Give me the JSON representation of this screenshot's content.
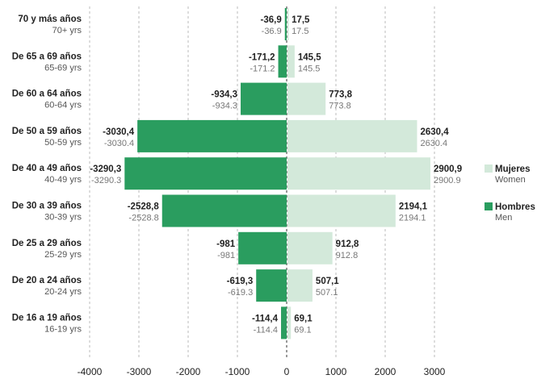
{
  "colors": {
    "men": "#2a9d5f",
    "women": "#d3e9da",
    "grid": "#bbbbbb",
    "axis": "#333333"
  },
  "chart_data": {
    "type": "bar",
    "orientation": "horizontal",
    "categories": [
      {
        "es": "70 y más años",
        "en": "70+ yrs"
      },
      {
        "es": "De 65 a 69 años",
        "en": "65-69 yrs"
      },
      {
        "es": "De 60 a 64 años",
        "en": "60-64 yrs"
      },
      {
        "es": "De 50 a 59 años",
        "en": "50-59 yrs"
      },
      {
        "es": "De 40 a 49 años",
        "en": "40-49 yrs"
      },
      {
        "es": "De 30 a 39 años",
        "en": "30-39 yrs"
      },
      {
        "es": "De 25 a 29 años",
        "en": "25-29 yrs"
      },
      {
        "es": "De 20 a 24 años",
        "en": "20-24 yrs"
      },
      {
        "es": "De 16 a 19 años",
        "en": "16-19 yrs"
      }
    ],
    "series": [
      {
        "name": "Hombres",
        "name_en": "Men",
        "key": "men",
        "values": [
          -36.9,
          -171.2,
          -934.3,
          -3030.4,
          -3290.3,
          -2528.8,
          -981,
          -619.3,
          -114.4
        ],
        "labels_es": [
          "-36,9",
          "-171,2",
          "-934,3",
          "-3030,4",
          "-3290,3",
          "-2528,8",
          "-981",
          "-619,3",
          "-114,4"
        ],
        "labels_en": [
          "-36.9",
          "-171.2",
          "-934.3",
          "-3030.4",
          "-3290.3",
          "-2528.8",
          "-981",
          "-619.3",
          "-114.4"
        ]
      },
      {
        "name": "Mujeres",
        "name_en": "Women",
        "key": "women",
        "values": [
          17.5,
          145.5,
          773.8,
          2630.4,
          2900.9,
          2194.1,
          912.8,
          507.1,
          69.1
        ],
        "labels_es": [
          "17,5",
          "145,5",
          "773,8",
          "2630,4",
          "2900,9",
          "2194,1",
          "912,8",
          "507,1",
          "69,1"
        ],
        "labels_en": [
          "17.5",
          "145.5",
          "773.8",
          "2630.4",
          "2900.9",
          "2194.1",
          "912.8",
          "507.1",
          "69.1"
        ]
      }
    ],
    "xlim": [
      -4000,
      3000
    ],
    "xticks": [
      -4000,
      -3000,
      -2000,
      -1000,
      0,
      1000,
      2000,
      3000
    ],
    "grid": "vertical dashed",
    "legend_position": "right",
    "legend": [
      {
        "key": "women",
        "label": "Mujeres",
        "sublabel": "Women"
      },
      {
        "key": "men",
        "label": "Hombres",
        "sublabel": "Men"
      }
    ]
  }
}
